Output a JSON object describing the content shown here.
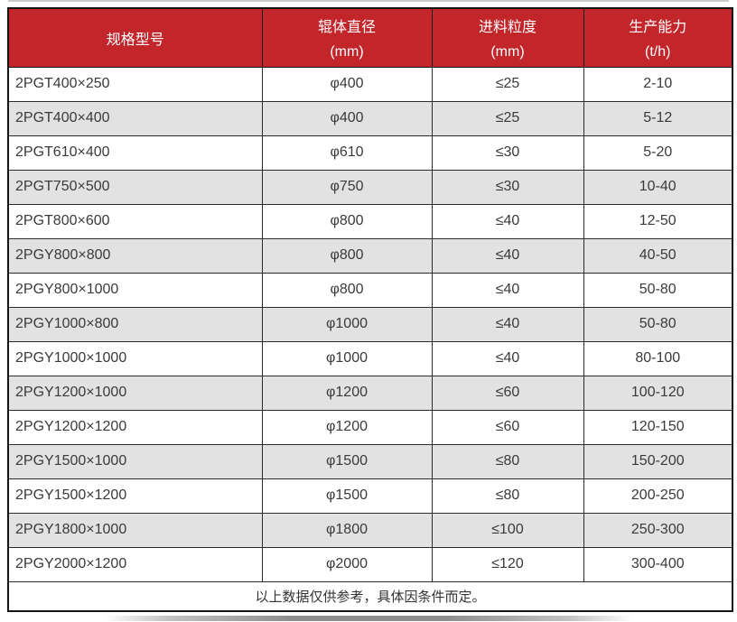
{
  "colors": {
    "header_bg": "#c2262b",
    "header_text": "#ffffff",
    "stripe_bg": "#e2e2e2",
    "row_bg": "#ffffff",
    "border": "#2b2b2b",
    "text": "#3a3a3a"
  },
  "table": {
    "columns": [
      {
        "label": "规格型号",
        "sub": ""
      },
      {
        "label": "辊体直径",
        "sub": "(mm)"
      },
      {
        "label": "进料粒度",
        "sub": "(mm)"
      },
      {
        "label": "生产能力",
        "sub": "(t/h)"
      }
    ],
    "rows": [
      [
        "2PGT400×250",
        "φ400",
        "≤25",
        "2-10"
      ],
      [
        "2PGT400×400",
        "φ400",
        "≤25",
        "5-12"
      ],
      [
        "2PGT610×400",
        "φ610",
        "≤30",
        "5-20"
      ],
      [
        "2PGT750×500",
        "φ750",
        "≤30",
        "10-40"
      ],
      [
        "2PGT800×600",
        "φ800",
        "≤40",
        "12-50"
      ],
      [
        "2PGY800×800",
        "φ800",
        "≤40",
        "40-50"
      ],
      [
        "2PGY800×1000",
        "φ800",
        "≤40",
        "50-80"
      ],
      [
        "2PGY1000×800",
        "φ1000",
        "≤40",
        "50-80"
      ],
      [
        "2PGY1000×1000",
        "φ1000",
        "≤40",
        "80-100"
      ],
      [
        "2PGY1200×1000",
        "φ1200",
        "≤60",
        "100-120"
      ],
      [
        "2PGY1200×1200",
        "φ1200",
        "≤60",
        "120-150"
      ],
      [
        "2PGY1500×1000",
        "φ1500",
        "≤80",
        "150-200"
      ],
      [
        "2PGY1500×1200",
        "φ1500",
        "≤80",
        "200-250"
      ],
      [
        "2PGY1800×1000",
        "φ1800",
        "≤100",
        "250-300"
      ],
      [
        "2PGY2000×1200",
        "φ2000",
        "≤120",
        "300-400"
      ]
    ],
    "footnote": "以上数据仅供参考，具体因条件而定。"
  }
}
